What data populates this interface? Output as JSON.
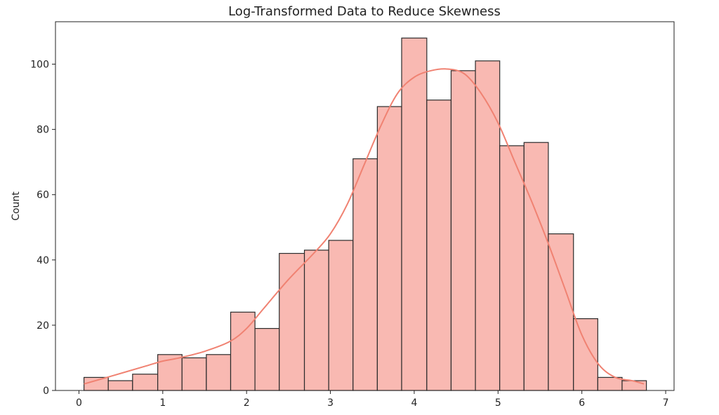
{
  "chart_data": {
    "type": "bar",
    "title": "Log-Transformed Data to Reduce Skewness",
    "xlabel": "",
    "ylabel": "Count",
    "xlim": [
      -0.28,
      7.1
    ],
    "ylim": [
      0,
      113
    ],
    "grid": false,
    "xticks": [
      0,
      1,
      2,
      3,
      4,
      5,
      6,
      7
    ],
    "yticks": [
      0,
      20,
      40,
      60,
      80,
      100
    ],
    "bar_color": "#f9b9b2",
    "edge_color": "#2b2b2b",
    "kde_color": "#f08272",
    "bins": [
      {
        "x0": 0.06,
        "x1": 0.35,
        "count": 4
      },
      {
        "x0": 0.35,
        "x1": 0.64,
        "count": 3
      },
      {
        "x0": 0.64,
        "x1": 0.94,
        "count": 5
      },
      {
        "x0": 0.94,
        "x1": 1.23,
        "count": 11
      },
      {
        "x0": 1.23,
        "x1": 1.52,
        "count": 10
      },
      {
        "x0": 1.52,
        "x1": 1.81,
        "count": 11
      },
      {
        "x0": 1.81,
        "x1": 2.1,
        "count": 24
      },
      {
        "x0": 2.1,
        "x1": 2.39,
        "count": 19
      },
      {
        "x0": 2.39,
        "x1": 2.69,
        "count": 42
      },
      {
        "x0": 2.69,
        "x1": 2.98,
        "count": 43
      },
      {
        "x0": 2.98,
        "x1": 3.27,
        "count": 46
      },
      {
        "x0": 3.27,
        "x1": 3.56,
        "count": 71
      },
      {
        "x0": 3.56,
        "x1": 3.85,
        "count": 87
      },
      {
        "x0": 3.85,
        "x1": 4.15,
        "count": 108
      },
      {
        "x0": 4.15,
        "x1": 4.44,
        "count": 89
      },
      {
        "x0": 4.44,
        "x1": 4.73,
        "count": 98
      },
      {
        "x0": 4.73,
        "x1": 5.02,
        "count": 101
      },
      {
        "x0": 5.02,
        "x1": 5.31,
        "count": 75
      },
      {
        "x0": 5.31,
        "x1": 5.6,
        "count": 76
      },
      {
        "x0": 5.6,
        "x1": 5.9,
        "count": 48
      },
      {
        "x0": 5.9,
        "x1": 6.19,
        "count": 22
      },
      {
        "x0": 6.19,
        "x1": 6.48,
        "count": 4
      },
      {
        "x0": 6.48,
        "x1": 6.77,
        "count": 3
      }
    ],
    "kde": {
      "x": [
        0.06,
        0.4,
        0.8,
        1.0,
        1.2,
        1.5,
        1.8,
        2.0,
        2.2,
        2.5,
        2.8,
        3.0,
        3.2,
        3.4,
        3.6,
        3.8,
        4.0,
        4.2,
        4.4,
        4.6,
        4.8,
        5.0,
        5.2,
        5.4,
        5.6,
        5.8,
        6.0,
        6.2,
        6.4,
        6.6,
        6.74
      ],
      "y": [
        2,
        4.5,
        7.5,
        9,
        10,
        12,
        15,
        19,
        25,
        34,
        42,
        48,
        57,
        69,
        81,
        91,
        96,
        98,
        98.5,
        97,
        91,
        82,
        70,
        58,
        45,
        31,
        17,
        8,
        4,
        3,
        2
      ]
    }
  }
}
